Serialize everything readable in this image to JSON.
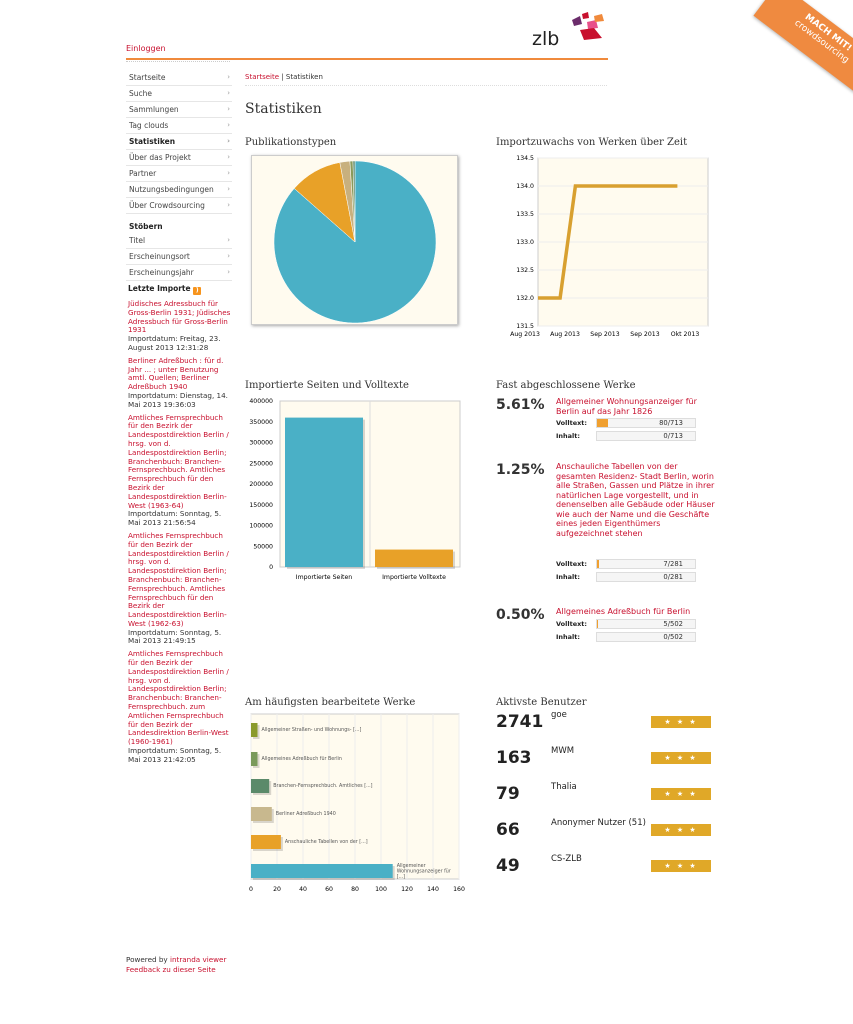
{
  "header": {
    "login": "Einloggen",
    "logo": "zlb",
    "ribbon_line1": "MACH MIT!",
    "ribbon_line2": "crowdsourcing"
  },
  "colors": {
    "accent": "#c8102e",
    "orange": "#f08a3c",
    "teal": "#4ab0c6",
    "gold": "#e8a128"
  },
  "nav": [
    {
      "label": "Startseite"
    },
    {
      "label": "Suche"
    },
    {
      "label": "Sammlungen"
    },
    {
      "label": "Tag clouds"
    },
    {
      "label": "Statistiken",
      "active": true
    },
    {
      "label": "Über das Projekt"
    },
    {
      "label": "Partner"
    },
    {
      "label": "Nutzungsbedingungen"
    },
    {
      "label": "Über Crowdsourcing"
    }
  ],
  "browse": {
    "title": "Stöbern",
    "items": [
      {
        "label": "Titel"
      },
      {
        "label": "Erscheinungsort"
      },
      {
        "label": "Erscheinungsjahr"
      }
    ]
  },
  "imports": {
    "title": "Letzte Importe",
    "items": [
      {
        "title": "Jüdisches Adressbuch für Gross-Berlin 1931; Jüdisches Adressbuch für Gross-Berlin 1931",
        "date": "Importdatum: Freitag, 23. August 2013 12:31:28"
      },
      {
        "title": "Berliner Adreßbuch : für d. Jahr ... ; unter Benutzung amtl. Quellen; Berliner Adreßbuch 1940",
        "date": "Importdatum: Dienstag, 14. Mai 2013 19:36:03"
      },
      {
        "title": "Amtliches Fernsprechbuch für den Bezirk der Landespostdirektion Berlin / hrsg. von d. Landespostdirektion Berlin; Branchenbuch: Branchen-Fernsprechbuch. Amtliches Fernsprechbuch für den Bezirk der Landespostdirektion Berlin-West (1963-64)",
        "date": "Importdatum: Sonntag, 5. Mai 2013 21:56:54"
      },
      {
        "title": "Amtliches Fernsprechbuch für den Bezirk der Landespostdirektion Berlin / hrsg. von d. Landespostdirektion Berlin; Branchenbuch: Branchen-Fernsprechbuch. Amtliches Fernsprechbuch für den Bezirk der Landespostdirektion Berlin-West (1962-63)",
        "date": "Importdatum: Sonntag, 5. Mai 2013 21:49:15"
      },
      {
        "title": "Amtliches Fernsprechbuch für den Bezirk der Landespostdirektion Berlin / hrsg. von d. Landespostdirektion Berlin; Branchenbuch: Branchen-Fernsprechbuch. zum Amtlichen Fernsprechbuch für den Bezirk der Landesdirektion Berlin-West (1960-1961)",
        "date": "Importdatum: Sonntag, 5. Mai 2013 21:42:05"
      }
    ]
  },
  "footer": {
    "powered_prefix": "Powered by ",
    "powered_link": "intranda viewer",
    "feedback": "Feedback zu dieser Seite"
  },
  "breadcrumb": {
    "home": "Startseite",
    "sep": " | ",
    "current": "Statistiken"
  },
  "page_title": "Statistiken",
  "sections": {
    "pub_types": "Publikationstypen",
    "import_growth": "Importzuwachs von Werken über Zeit",
    "pages": "Importierte Seiten und Volltexte",
    "almost": "Fast abgeschlossene Werke",
    "edited": "Am häufigsten bearbeitete Werke",
    "users": "Aktivste Benutzer"
  },
  "chart_data": [
    {
      "type": "pie",
      "title": "Publikationstypen",
      "slices": [
        {
          "value": 86.5,
          "color": "#4ab0c6"
        },
        {
          "value": 10.5,
          "color": "#e8a128"
        },
        {
          "value": 2.0,
          "color": "#c8b07e"
        },
        {
          "value": 0.6,
          "color": "#8a9a5b"
        },
        {
          "value": 0.4,
          "color": "#5b8a6a"
        }
      ]
    },
    {
      "type": "line",
      "title": "Importzuwachs von Werken über Zeit",
      "ylim": [
        131.5,
        134.5
      ],
      "yticks": [
        "131.5",
        "132.0",
        "132.5",
        "133.0",
        "133.5",
        "134.0",
        "134.5"
      ],
      "xticks": [
        "Aug 2013",
        "Aug 2013",
        "Sep 2013",
        "Sep 2013",
        "Okt 2013"
      ],
      "points": [
        [
          0,
          132
        ],
        [
          0.13,
          132
        ],
        [
          0.22,
          134
        ],
        [
          0.5,
          134
        ],
        [
          0.82,
          134
        ]
      ]
    },
    {
      "type": "bar",
      "title": "Importierte Seiten und Volltexte",
      "ylim": [
        0,
        400000
      ],
      "yticks": [
        "0",
        "50000",
        "100000",
        "150000",
        "200000",
        "250000",
        "300000",
        "350000",
        "400000"
      ],
      "categories": [
        "Importierte Seiten",
        "Importierte Volltexte"
      ],
      "values": [
        360000,
        42000
      ],
      "colors": [
        "#4ab0c6",
        "#e8a128"
      ]
    },
    {
      "type": "bar",
      "title": "Am häufigsten bearbeitete Werke",
      "xlim": [
        0,
        160
      ],
      "xticks": [
        "0",
        "20",
        "40",
        "60",
        "80",
        "100",
        "120",
        "140",
        "160"
      ],
      "categories": [
        "Allgemeiner Straßen- und Wohnungs- [...]",
        "Allgemeines Adreßbuch für Berlin",
        "Branchen-Fernsprechbuch. Amtliches [...]",
        "Berliner Adreßbuch 1940",
        "Anschauliche Tabellen von der [...]",
        "Allgemeiner Wohnungsanzeiger für [...]"
      ],
      "values": [
        5,
        5,
        14,
        16,
        23,
        109
      ],
      "colors": [
        "#8a9a2b",
        "#7a9a5b",
        "#5b8a6a",
        "#c8b88e",
        "#e8a128",
        "#4ab0c6"
      ]
    }
  ],
  "almost_done": [
    {
      "pct": "5.61%",
      "title": "Allgemeiner Wohnungsanzeiger für Berlin auf das Jahr 1826",
      "volltext_label": "Volltext:",
      "volltext": "80/713",
      "volltext_frac": 0.112,
      "inhalt_label": "Inhalt:",
      "inhalt": "0/713"
    },
    {
      "pct": "1.25%",
      "title": "Anschauliche Tabellen von der gesamten Residenz- Stadt Berlin, worin alle Straßen, Gassen und Plätze in ihrer natürlichen Lage vorgestellt, und in denenselben alle Gebäude oder Häuser wie auch der Name und die Geschäfte eines jeden Eigenthümers aufgezeichnet stehen",
      "volltext_label": "Volltext:",
      "volltext": "7/281",
      "volltext_frac": 0.025,
      "inhalt_label": "Inhalt:",
      "inhalt": "0/281"
    },
    {
      "pct": "0.50%",
      "title": "Allgemeines Adreßbuch für Berlin",
      "volltext_label": "Volltext:",
      "volltext": "5/502",
      "volltext_frac": 0.01,
      "inhalt_label": "Inhalt:",
      "inhalt": "0/502"
    }
  ],
  "users": [
    {
      "count": "2741",
      "name": "goe"
    },
    {
      "count": "163",
      "name": "MWM"
    },
    {
      "count": "79",
      "name": "Thalia"
    },
    {
      "count": "66",
      "name": "Anonymer Nutzer (51)"
    },
    {
      "count": "49",
      "name": "CS-ZLB"
    }
  ],
  "stars": "★ ★ ★"
}
